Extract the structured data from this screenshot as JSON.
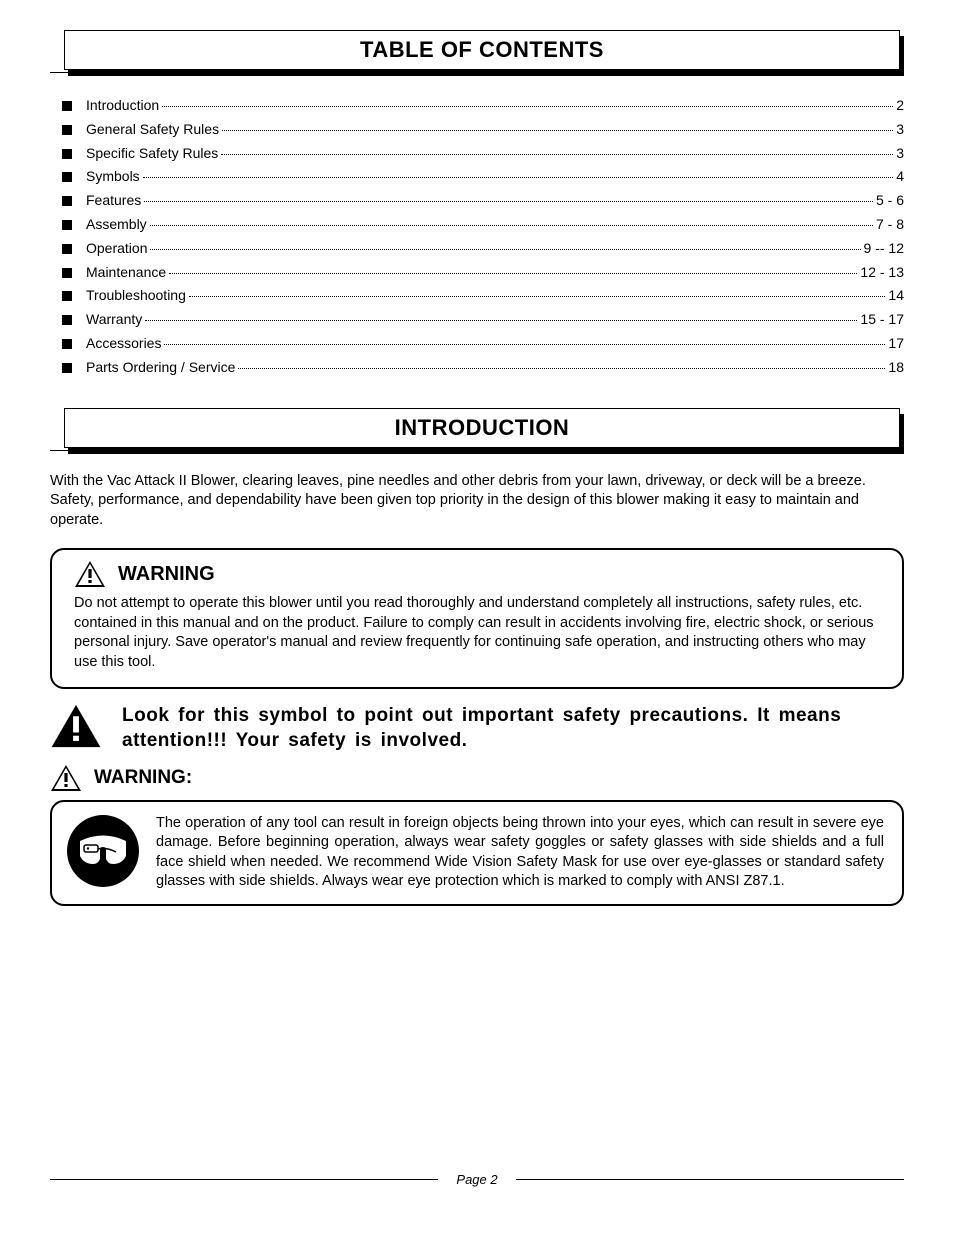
{
  "colors": {
    "text": "#000000",
    "bg": "#ffffff",
    "rule": "#000000"
  },
  "typography": {
    "body_fontsize_pt": 11,
    "heading_fontsize_pt": 17,
    "warning_title_fontsize_pt": 15
  },
  "headers": {
    "toc": "TABLE OF CONTENTS",
    "intro": "INTRODUCTION"
  },
  "toc": {
    "items": [
      {
        "label": "Introduction",
        "page": "2"
      },
      {
        "label": "General Safety Rules",
        "page": "3"
      },
      {
        "label": "Specific Safety Rules",
        "page": "3"
      },
      {
        "label": "Symbols",
        "page": "4"
      },
      {
        "label": "Features",
        "page": "5 - 6"
      },
      {
        "label": "Assembly",
        "page": "7 - 8"
      },
      {
        "label": "Operation",
        "page": "9 -- 12"
      },
      {
        "label": "Maintenance",
        "page": "12 - 13"
      },
      {
        "label": "Troubleshooting",
        "page": "14"
      },
      {
        "label": "Warranty",
        "page": "15 - 17"
      },
      {
        "label": "Accessories",
        "page": "17"
      },
      {
        "label": "Parts Ordering / Service",
        "page": "18"
      }
    ]
  },
  "intro_text": "With the Vac Attack II Blower, clearing leaves, pine needles and other debris from your lawn, driveway, or deck will be a breeze. Safety, performance, and dependability have been given top priority in the design of this blower making it easy to maintain and operate.",
  "warning1": {
    "title": "WARNING",
    "body": "Do not attempt to operate this blower until you read thoroughly and understand completely all instructions, safety rules, etc. contained in this manual and on the product. Failure to comply can result in accidents involving fire, electric shock, or serious personal injury. Save operator's manual and review frequently for continuing safe operation, and instructing others who may use this tool."
  },
  "safety_callout": "Look for this symbol to point out important safety precautions. It means attention!!! Your safety is involved.",
  "warning2": {
    "title": "WARNING:",
    "body": "The operation of any tool can result in foreign objects being thrown into your eyes, which can result in severe eye damage. Before beginning operation, always wear safety goggles or safety glasses with side shields and a full face shield when needed. We recommend Wide Vision Safety Mask for use over eye-glasses or standard safety glasses with side shields. Always wear eye protection which is marked to comply with ANSI Z87.1."
  },
  "footer": {
    "label": "Page 2"
  }
}
